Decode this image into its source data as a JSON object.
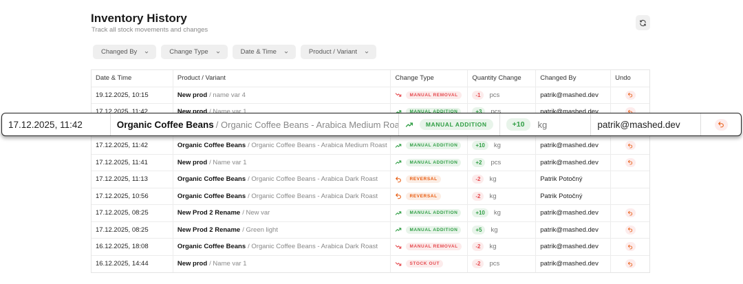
{
  "header": {
    "title": "Inventory History",
    "subtitle": "Track all stock movements and changes"
  },
  "filters": [
    "Changed By",
    "Change Type",
    "Date & Time",
    "Product / Variant"
  ],
  "table": {
    "columns": [
      "Date & Time",
      "Product / Variant",
      "Change Type",
      "Quantity Change",
      "Changed By",
      "Undo"
    ],
    "rows": [
      {
        "date": "19.12.2025, 10:15",
        "product": "New prod",
        "variant": "name var 4",
        "change_type": "MANUAL REMOVAL",
        "trend": "down",
        "color": "#e5484d",
        "quantity": "-1",
        "unit": "pcs",
        "changed_by": "patrik@mashed.dev",
        "undo": true
      },
      {
        "date": "17.12.2025, 11:42",
        "product": "New prod",
        "variant": "Name var 1",
        "change_type": "MANUAL ADDITION",
        "trend": "up",
        "color": "#2f9e44",
        "quantity": "+3",
        "unit": "pcs",
        "changed_by": "patrik@mashed.dev",
        "undo": true
      },
      {
        "date": "17.12.2025, 11:42",
        "product": "Organic Coffee Beans",
        "variant": "Organic Coffee Beans - Arabica Medium Roast",
        "change_type": "MANUAL ADDITION",
        "trend": "up",
        "color": "#2f9e44",
        "quantity": "+10",
        "unit": "kg",
        "changed_by": "patrik@mashed.dev",
        "undo": true
      },
      {
        "date": "17.12.2025, 11:42",
        "product": "Organic Coffee Beans",
        "variant": "Organic Coffee Beans - Arabica Medium Roast",
        "change_type": "MANUAL ADDITION",
        "trend": "up",
        "color": "#2f9e44",
        "quantity": "+10",
        "unit": "kg",
        "changed_by": "patrik@mashed.dev",
        "undo": true
      },
      {
        "date": "17.12.2025, 11:41",
        "product": "New prod",
        "variant": "Name var 1",
        "change_type": "MANUAL ADDITION",
        "trend": "up",
        "color": "#2f9e44",
        "quantity": "+2",
        "unit": "pcs",
        "changed_by": "patrik@mashed.dev",
        "undo": true
      },
      {
        "date": "17.12.2025, 11:13",
        "product": "Organic Coffee Beans",
        "variant": "Organic Coffee Beans - Arabica Dark Roast",
        "change_type": "REVERSAL",
        "trend": "back",
        "color": "#e8590c",
        "quantity": "-2",
        "unit": "kg",
        "changed_by": "Patrik Potočný",
        "undo": false
      },
      {
        "date": "17.12.2025, 10:56",
        "product": "Organic Coffee Beans",
        "variant": "Organic Coffee Beans - Arabica Dark Roast",
        "change_type": "REVERSAL",
        "trend": "back",
        "color": "#e8590c",
        "quantity": "-2",
        "unit": "kg",
        "changed_by": "Patrik Potočný",
        "undo": false
      },
      {
        "date": "17.12.2025, 08:25",
        "product": "New Prod 2 Rename",
        "variant": "New var",
        "change_type": "MANUAL ADDITION",
        "trend": "up",
        "color": "#2f9e44",
        "quantity": "+10",
        "unit": "kg",
        "changed_by": "patrik@mashed.dev",
        "undo": true
      },
      {
        "date": "17.12.2025, 08:25",
        "product": "New Prod 2 Rename",
        "variant": "Green light",
        "change_type": "MANUAL ADDITION",
        "trend": "up",
        "color": "#2f9e44",
        "quantity": "+5",
        "unit": "kg",
        "changed_by": "patrik@mashed.dev",
        "undo": true
      },
      {
        "date": "16.12.2025, 18:08",
        "product": "Organic Coffee Beans",
        "variant": "Organic Coffee Beans - Arabica Dark Roast",
        "change_type": "MANUAL REMOVAL",
        "trend": "down",
        "color": "#e5484d",
        "quantity": "-2",
        "unit": "kg",
        "changed_by": "patrik@mashed.dev",
        "undo": true
      },
      {
        "date": "16.12.2025, 14:44",
        "product": "New prod",
        "variant": "Name var 1",
        "change_type": "STOCK OUT",
        "trend": "down",
        "color": "#e5484d",
        "quantity": "-2",
        "unit": "pcs",
        "changed_by": "patrik@mashed.dev",
        "undo": true
      }
    ]
  },
  "highlight_row": 2
}
